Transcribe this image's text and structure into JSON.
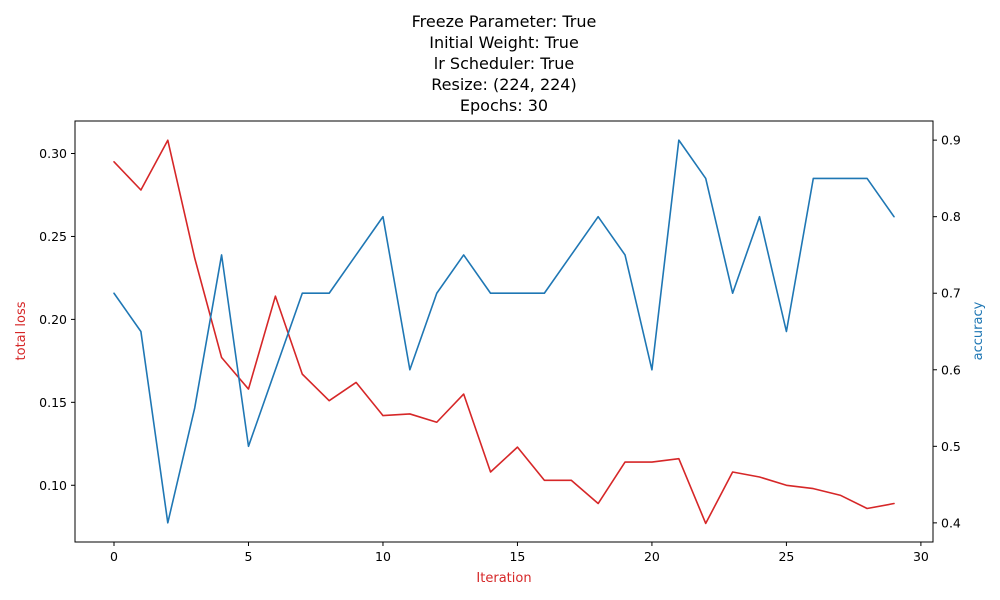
{
  "chart_data": {
    "type": "line",
    "title_lines": [
      "Freeze Parameter: True",
      "Initial Weight: True",
      "lr Scheduler: True",
      "Resize: (224, 224)",
      "Epochs: 30"
    ],
    "xlabel": "Iteration",
    "ylabel_left": "total loss",
    "ylabel_right": "accuracy",
    "xlim": [
      -1.45,
      30.45
    ],
    "ylim_left": [
      0.0658,
      0.3196
    ],
    "ylim_right": [
      0.375,
      0.925
    ],
    "x_ticks": [
      0,
      5,
      10,
      15,
      20,
      25,
      30
    ],
    "y_ticks_left": [
      0.1,
      0.15,
      0.2,
      0.25,
      0.3
    ],
    "y_ticks_right": [
      0.4,
      0.5,
      0.6,
      0.7,
      0.8,
      0.9
    ],
    "grid": false,
    "x": [
      0,
      1,
      2,
      3,
      4,
      5,
      6,
      7,
      8,
      9,
      10,
      11,
      12,
      13,
      14,
      15,
      16,
      17,
      18,
      19,
      20,
      21,
      22,
      23,
      24,
      25,
      26,
      27,
      28,
      29
    ],
    "series": [
      {
        "axis": "left",
        "color": "#d62728",
        "values": [
          0.295,
          0.278,
          0.308,
          0.237,
          0.177,
          0.158,
          0.214,
          0.167,
          0.151,
          0.162,
          0.142,
          0.143,
          0.138,
          0.155,
          0.108,
          0.123,
          0.103,
          0.103,
          0.089,
          0.114,
          0.114,
          0.116,
          0.077,
          0.108,
          0.105,
          0.1,
          0.098,
          0.094,
          0.086,
          0.089
        ]
      },
      {
        "axis": "right",
        "color": "#1f77b4",
        "values": [
          0.7,
          0.65,
          0.4,
          0.55,
          0.75,
          0.5,
          0.6,
          0.7,
          0.7,
          0.75,
          0.8,
          0.6,
          0.7,
          0.75,
          0.7,
          0.7,
          0.7,
          0.75,
          0.8,
          0.75,
          0.6,
          0.9,
          0.85,
          0.7,
          0.8,
          0.65,
          0.85,
          0.85,
          0.85,
          0.8
        ]
      }
    ],
    "colors": {
      "left_axis": "#d62728",
      "right_axis": "#1f77b4"
    }
  }
}
